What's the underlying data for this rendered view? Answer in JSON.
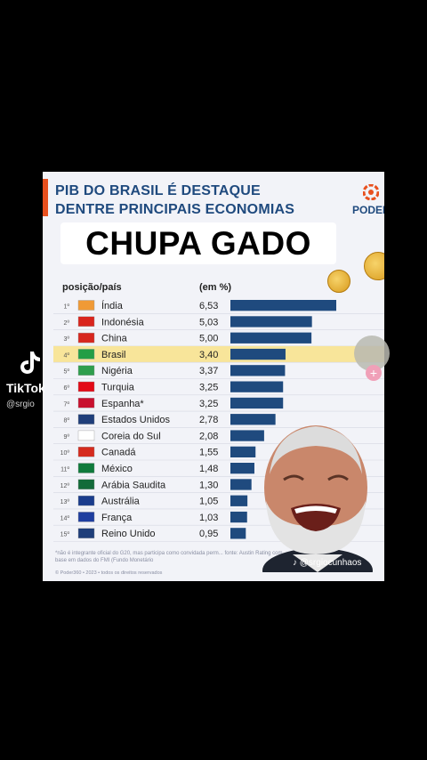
{
  "headline": [
    "PIB DO BRASIL É DESTAQUE",
    "DENTRE PRINCIPAIS ECONOMIAS"
  ],
  "brand": "PODER",
  "caption": "CHUPA GADO",
  "chart_data": {
    "type": "bar",
    "col_headers": {
      "position_country": "posição/país",
      "unit": "(em %)"
    },
    "positions": [
      "1º",
      "2º",
      "3º",
      "4º",
      "5º",
      "6º",
      "7º",
      "8º",
      "9º",
      "10º",
      "11º",
      "12º",
      "13º",
      "14º",
      "15º"
    ],
    "categories": [
      "Índia",
      "Indonésia",
      "China",
      "Brasil",
      "Nigéria",
      "Turquia",
      "Espanha*",
      "Estados Unidos",
      "Coreia do Sul",
      "Canadá",
      "México",
      "Arábia Saudita",
      "Austrália",
      "França",
      "Reino Unido"
    ],
    "labels": [
      "6,53",
      "5,03",
      "5,00",
      "3,40",
      "3,37",
      "3,25",
      "3,25",
      "2,78",
      "2,08",
      "1,55",
      "1,48",
      "1,30",
      "1,05",
      "1,03",
      "0,95"
    ],
    "values": [
      6.53,
      5.03,
      5.0,
      3.4,
      3.37,
      3.25,
      3.25,
      2.78,
      2.08,
      1.55,
      1.48,
      1.3,
      1.05,
      1.03,
      0.95
    ],
    "highlight": "Brasil",
    "bar_color": "#1f4a7e",
    "highlight_color": "#f8e59a"
  },
  "footnote": "*não é integrante oficial do G20, mas participa como convidada perm... fonte: Austin Rating com base em dados do FMI (Fundo Monetário",
  "copyright": "© Poder360 • 2023 • todos os direitos reservados",
  "watermark": {
    "app": "TikTok",
    "handle_left": "@srgio",
    "handle_right": "@srgiocunhaos"
  }
}
